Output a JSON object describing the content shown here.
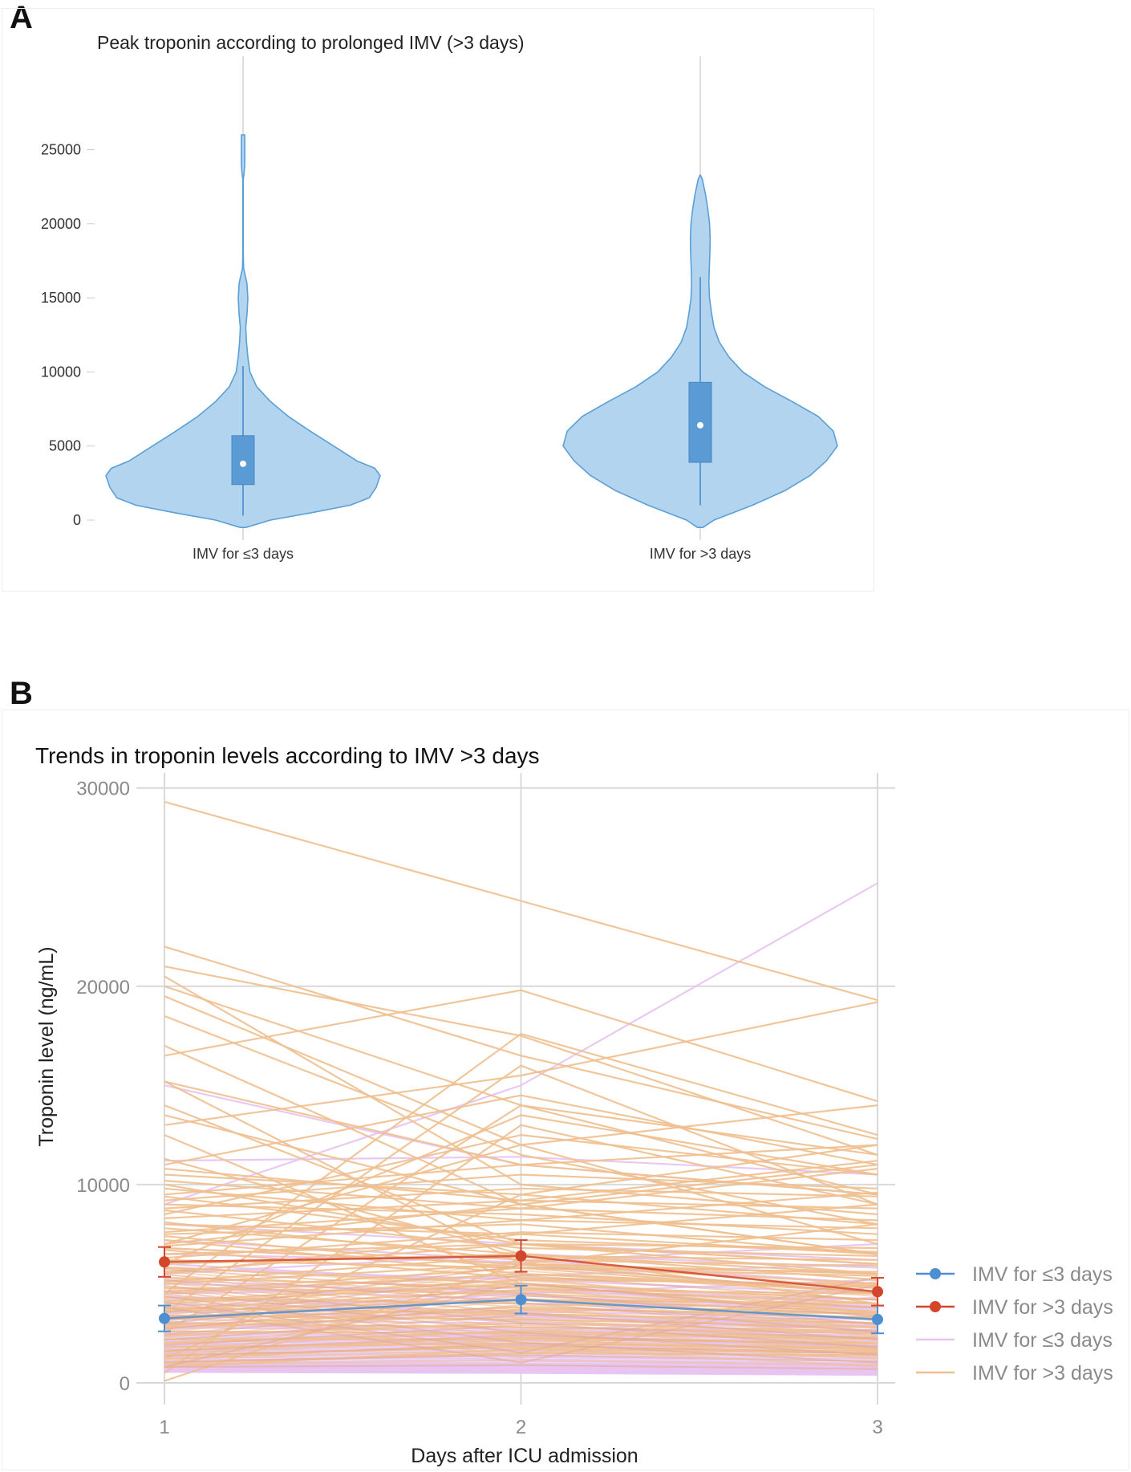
{
  "panels": {
    "a_letter": "A",
    "b_letter": "B"
  },
  "chart_data": [
    {
      "type": "violin",
      "title": "Peak troponin according to prolonged IMV (>3 days)",
      "xlabel": "",
      "ylabel": "",
      "ylim": [
        -500,
        26500
      ],
      "yticks": [
        0,
        5000,
        10000,
        15000,
        20000,
        25000
      ],
      "categories": [
        "IMV for ≤3 days",
        "IMV for >3 days"
      ],
      "colors": {
        "fill": "#b3d4ef",
        "stroke": "#5a9fd6",
        "box": "#5b9bd5"
      },
      "groups": [
        {
          "name": "IMV for ≤3 days",
          "min": 300,
          "q1": 2400,
          "median": 3800,
          "q3": 5700,
          "whisker_high": 10400,
          "max": 26000,
          "density": [
            [
              -500,
              0.02
            ],
            [
              0,
              0.2
            ],
            [
              500,
              0.5
            ],
            [
              1000,
              0.78
            ],
            [
              1500,
              0.92
            ],
            [
              2200,
              0.97
            ],
            [
              3000,
              1.0
            ],
            [
              3500,
              0.96
            ],
            [
              4000,
              0.83
            ],
            [
              5000,
              0.66
            ],
            [
              6000,
              0.49
            ],
            [
              7000,
              0.33
            ],
            [
              8000,
              0.2
            ],
            [
              9000,
              0.1
            ],
            [
              10000,
              0.05
            ],
            [
              11000,
              0.035
            ],
            [
              12000,
              0.025
            ],
            [
              13000,
              0.02
            ],
            [
              14000,
              0.03
            ],
            [
              15000,
              0.035
            ],
            [
              16000,
              0.028
            ],
            [
              17000,
              0.004
            ],
            [
              18000,
              0.002
            ],
            [
              23000,
              0.002
            ],
            [
              23500,
              0.008
            ],
            [
              24000,
              0.012
            ],
            [
              25000,
              0.013
            ],
            [
              26000,
              0.012
            ]
          ]
        },
        {
          "name": "IMV for >3 days",
          "min": 1000,
          "q1": 3900,
          "median": 6400,
          "q3": 9300,
          "whisker_high": 16400,
          "max": 23300,
          "density": [
            [
              -500,
              0.02
            ],
            [
              0,
              0.1
            ],
            [
              1000,
              0.38
            ],
            [
              2000,
              0.62
            ],
            [
              3000,
              0.8
            ],
            [
              4000,
              0.92
            ],
            [
              5000,
              1.0
            ],
            [
              6000,
              0.97
            ],
            [
              7000,
              0.86
            ],
            [
              8000,
              0.67
            ],
            [
              9000,
              0.47
            ],
            [
              10000,
              0.31
            ],
            [
              11000,
              0.21
            ],
            [
              12000,
              0.14
            ],
            [
              13000,
              0.1
            ],
            [
              14000,
              0.082
            ],
            [
              15000,
              0.067
            ],
            [
              16000,
              0.063
            ],
            [
              17000,
              0.066
            ],
            [
              18000,
              0.07
            ],
            [
              19000,
              0.072
            ],
            [
              20000,
              0.068
            ],
            [
              21000,
              0.055
            ],
            [
              22000,
              0.038
            ],
            [
              23000,
              0.015
            ],
            [
              23300,
              0.0
            ]
          ]
        }
      ]
    },
    {
      "type": "line",
      "title": "Trends in troponin levels according to IMV >3 days",
      "xlabel": "Days after ICU admission",
      "ylabel": "Troponin level (ng/mL)",
      "x": [
        1,
        2,
        3
      ],
      "xlim": [
        0.93,
        3.05
      ],
      "ylim": [
        -700,
        30500
      ],
      "yticks": [
        0,
        10000,
        20000,
        30000
      ],
      "means": [
        {
          "name": "IMV for ≤3 days",
          "color": "#4d8fd0",
          "values": [
            3250,
            4200,
            3200
          ],
          "err": [
            650,
            700,
            700
          ]
        },
        {
          "name": "IMV for >3 days",
          "color": "#d3462c",
          "values": [
            6100,
            6400,
            4600
          ],
          "err": [
            750,
            800,
            700
          ]
        }
      ],
      "individual": {
        "short_color": "#e7c3f0",
        "long_color": "#f0bf8f",
        "short": [
          [
            15000,
            11000,
            9500
          ],
          [
            11200,
            11400,
            10500
          ],
          [
            9000,
            15000,
            25200
          ],
          [
            8000,
            7000,
            6200
          ],
          [
            6800,
            6000,
            5500
          ],
          [
            7200,
            6200,
            5000
          ],
          [
            5800,
            5200,
            4500
          ],
          [
            6500,
            6100,
            7000
          ],
          [
            5000,
            4600,
            4200
          ],
          [
            4800,
            4200,
            3900
          ],
          [
            4500,
            4800,
            3600
          ],
          [
            4200,
            4000,
            3800
          ],
          [
            4000,
            3600,
            3300
          ],
          [
            3800,
            3400,
            3200
          ],
          [
            3600,
            3300,
            3000
          ],
          [
            3400,
            3200,
            2900
          ],
          [
            3200,
            3000,
            2800
          ],
          [
            3000,
            2800,
            2600
          ],
          [
            2900,
            2700,
            2500
          ],
          [
            2800,
            2600,
            2400
          ],
          [
            2600,
            2500,
            2300
          ],
          [
            2500,
            2400,
            2200
          ],
          [
            2400,
            2300,
            2100
          ],
          [
            2300,
            2200,
            2000
          ],
          [
            2200,
            2100,
            1900
          ],
          [
            2100,
            2000,
            1800
          ],
          [
            2000,
            1900,
            1700
          ],
          [
            1900,
            1800,
            1600
          ],
          [
            1800,
            1700,
            1500
          ],
          [
            1700,
            1600,
            1400
          ],
          [
            1600,
            1500,
            1300
          ],
          [
            1500,
            1400,
            1200
          ],
          [
            1400,
            1300,
            1100
          ],
          [
            1300,
            1200,
            1000
          ],
          [
            1200,
            1100,
            950
          ],
          [
            1100,
            1000,
            900
          ],
          [
            1000,
            950,
            850
          ],
          [
            950,
            900,
            800
          ],
          [
            900,
            850,
            750
          ],
          [
            850,
            800,
            700
          ],
          [
            800,
            750,
            650
          ],
          [
            750,
            700,
            600
          ],
          [
            700,
            650,
            550
          ],
          [
            650,
            600,
            500
          ],
          [
            600,
            550,
            450
          ],
          [
            550,
            500,
            400
          ],
          [
            3500,
            4500,
            5200
          ],
          [
            2700,
            3500,
            4300
          ],
          [
            1800,
            2600,
            3400
          ],
          [
            5500,
            6500,
            5800
          ],
          [
            4600,
            5400,
            6000
          ],
          [
            3900,
            4200,
            2600
          ],
          [
            3100,
            2400,
            1700
          ],
          [
            2000,
            2500,
            2900
          ],
          [
            1500,
            2200,
            2700
          ],
          [
            1000,
            1500,
            2000
          ],
          [
            6000,
            5000,
            4000
          ],
          [
            5200,
            4400,
            3700
          ],
          [
            4400,
            3500,
            2800
          ],
          [
            3700,
            3100,
            2500
          ]
        ],
        "long": [
          [
            29300,
            24300,
            19300
          ],
          [
            22000,
            16500,
            12300
          ],
          [
            21000,
            17500,
            11500
          ],
          [
            20500,
            10000,
            8500
          ],
          [
            19500,
            12000,
            7000
          ],
          [
            16500,
            19800,
            14200
          ],
          [
            15200,
            11000,
            12000
          ],
          [
            13500,
            9000,
            6500
          ],
          [
            13000,
            15500,
            19200
          ],
          [
            11000,
            14500,
            11000
          ],
          [
            10500,
            9500,
            8000
          ],
          [
            10000,
            7000,
            6000
          ],
          [
            9500,
            11000,
            9500
          ],
          [
            9000,
            8500,
            7500
          ],
          [
            8500,
            12500,
            10500
          ],
          [
            8000,
            7500,
            9000
          ],
          [
            7800,
            6500,
            5500
          ],
          [
            7500,
            8000,
            6500
          ],
          [
            7200,
            5500,
            4800
          ],
          [
            7000,
            9000,
            11000
          ],
          [
            6800,
            6000,
            5000
          ],
          [
            6500,
            7000,
            6000
          ],
          [
            6200,
            5800,
            4500
          ],
          [
            6000,
            6500,
            5200
          ],
          [
            5800,
            5000,
            4200
          ],
          [
            5500,
            7500,
            6500
          ],
          [
            5300,
            4800,
            4000
          ],
          [
            5000,
            6000,
            5500
          ],
          [
            4800,
            4500,
            3800
          ],
          [
            4500,
            5500,
            4600
          ],
          [
            4300,
            4000,
            3500
          ],
          [
            4000,
            5000,
            4200
          ],
          [
            3800,
            3500,
            3000
          ],
          [
            3600,
            4200,
            3600
          ],
          [
            3400,
            3200,
            2800
          ],
          [
            3200,
            3800,
            3300
          ],
          [
            3000,
            2800,
            2500
          ],
          [
            2800,
            3500,
            3000
          ],
          [
            2600,
            2500,
            2200
          ],
          [
            2400,
            3000,
            2600
          ],
          [
            2200,
            2200,
            2000
          ],
          [
            2000,
            2600,
            2300
          ],
          [
            1800,
            2000,
            1800
          ],
          [
            1600,
            2300,
            2000
          ],
          [
            1400,
            1800,
            1600
          ],
          [
            1200,
            2000,
            1700
          ],
          [
            1000,
            1500,
            1400
          ],
          [
            800,
            1700,
            1500
          ],
          [
            100,
            6000,
            8000
          ],
          [
            500,
            13000,
            9000
          ],
          [
            1200,
            9500,
            12000
          ],
          [
            2500,
            14000,
            11500
          ],
          [
            3500,
            16000,
            9000
          ],
          [
            4500,
            17600,
            12500
          ],
          [
            6000,
            13500,
            10500
          ],
          [
            7000,
            12000,
            14000
          ],
          [
            11300,
            6500,
            4000
          ],
          [
            12500,
            5000,
            3500
          ],
          [
            14000,
            7000,
            5500
          ],
          [
            15200,
            6000,
            4500
          ],
          [
            17000,
            9000,
            6500
          ],
          [
            18500,
            11500,
            8000
          ],
          [
            20000,
            14000,
            9500
          ],
          [
            9200,
            10500,
            9800
          ],
          [
            8800,
            9800,
            9400
          ],
          [
            8300,
            9200,
            8800
          ],
          [
            7600,
            8800,
            8200
          ],
          [
            6900,
            8200,
            7800
          ],
          [
            6300,
            7600,
            7200
          ],
          [
            5600,
            7000,
            6800
          ],
          [
            5100,
            6400,
            6200
          ],
          [
            4600,
            5800,
            5600
          ],
          [
            4100,
            5200,
            5000
          ],
          [
            3700,
            4700,
            4500
          ],
          [
            3300,
            4200,
            4000
          ],
          [
            2900,
            3700,
            3500
          ],
          [
            9800,
            8200,
            9600
          ],
          [
            10200,
            8800,
            10800
          ],
          [
            10800,
            9200,
            11200
          ],
          [
            9400,
            7200,
            6600
          ],
          [
            8700,
            6800,
            6400
          ],
          [
            8100,
            6200,
            5900
          ],
          [
            7400,
            5800,
            5400
          ],
          [
            6700,
            5300,
            4900
          ]
        ]
      },
      "legend": [
        {
          "label": "IMV for ≤3 days",
          "kind": "point-line",
          "color": "#4d8fd0"
        },
        {
          "label": "IMV for >3 days",
          "kind": "point-line",
          "color": "#d3462c"
        },
        {
          "label": "IMV for ≤3 days",
          "kind": "line",
          "color": "#e7c3f0"
        },
        {
          "label": "IMV for >3 days",
          "kind": "line",
          "color": "#f0bf8f"
        }
      ],
      "legend_position": "right"
    }
  ]
}
